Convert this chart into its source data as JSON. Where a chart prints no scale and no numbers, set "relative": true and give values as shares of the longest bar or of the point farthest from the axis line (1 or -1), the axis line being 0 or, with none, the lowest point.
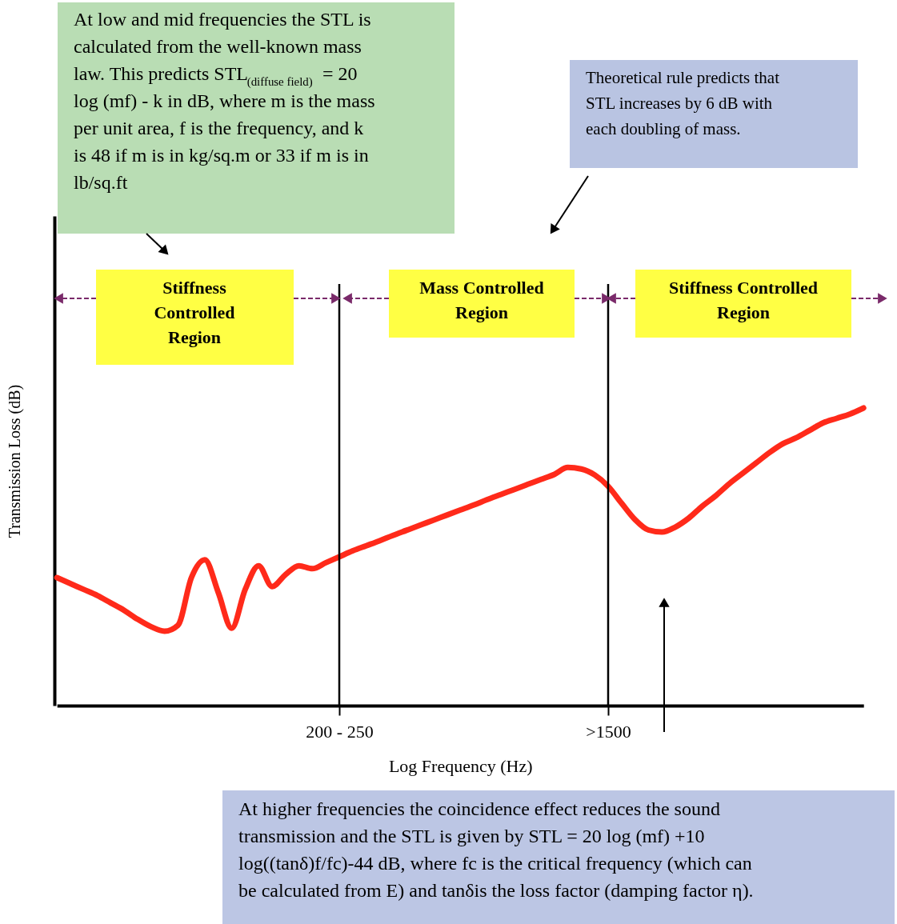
{
  "chart_data": {
    "type": "line",
    "relative": true,
    "xlabel": "Log Frequency  (Hz)",
    "ylabel": "Transmission Loss (dB)",
    "categories": [
      null,
      null,
      null,
      null,
      null,
      null,
      null,
      null,
      null,
      null,
      null,
      null,
      null,
      null,
      null,
      null,
      null,
      null,
      null,
      null,
      null,
      "200 - 250",
      null,
      null,
      null,
      null,
      null,
      null,
      null,
      null,
      null,
      null,
      null,
      null,
      null,
      null,
      null,
      null,
      null,
      null,
      null,
      ">1500",
      null,
      null,
      null,
      null,
      null,
      null,
      null,
      null,
      null,
      null,
      null,
      null,
      null,
      null,
      null,
      null,
      null,
      null,
      null
    ],
    "series": [
      {
        "color": "#ff2a1a",
        "values": [
          0.43,
          0.41,
          0.39,
          0.37,
          0.345,
          0.32,
          0.29,
          0.265,
          0.25,
          0.27,
          0.43,
          0.49,
          0.38,
          0.26,
          0.39,
          0.47,
          0.4,
          0.44,
          0.47,
          0.46,
          0.48,
          0.5,
          0.52,
          0.537,
          0.554,
          0.572,
          0.589,
          0.606,
          0.623,
          0.64,
          0.657,
          0.674,
          0.692,
          0.709,
          0.726,
          0.743,
          0.76,
          0.777,
          0.8,
          0.795,
          0.775,
          0.737,
          0.68,
          0.625,
          0.59,
          0.583,
          0.6,
          0.63,
          0.67,
          0.705,
          0.745,
          0.78,
          0.815,
          0.85,
          0.88,
          0.9,
          0.925,
          0.95,
          0.965,
          0.98,
          1.0
        ]
      }
    ],
    "ref_lines": [
      {
        "axis": "x",
        "value": "200 - 250"
      },
      {
        "axis": "x",
        "value": ">1500"
      }
    ],
    "grid": false,
    "marker": "none",
    "line_style": "solid",
    "annotations": [
      "At low and mid frequencies the STL is\ncalculated from the well-known mass\nlaw.  This predicts STL$_{(diffuse field)}$ = 20\nlog (mf) - k in dB, where m is the mass\nper unit area, f is the frequency, and k\nis 48 if m is in kg/sq.m or 33 if m is in\nlb/sq.ft",
      "Theoretical rule predicts that\nSTL increases by 6 dB with\neach doubling of mass.",
      "At higher frequencies the coincidence effect reduces the sound\ntransmission and the STL is given by STL = 20 log (mf) +10\nlog((tanδ)f/fc)-44 dB, where fc is the critical frequency (which can\nbe calculated from E) and tanδis the loss factor (damping factor η).",
      "Stiffness\nControlled\nRegion",
      "Mass Controlled\nRegion",
      "Stiffness Controlled\nRegion"
    ]
  }
}
